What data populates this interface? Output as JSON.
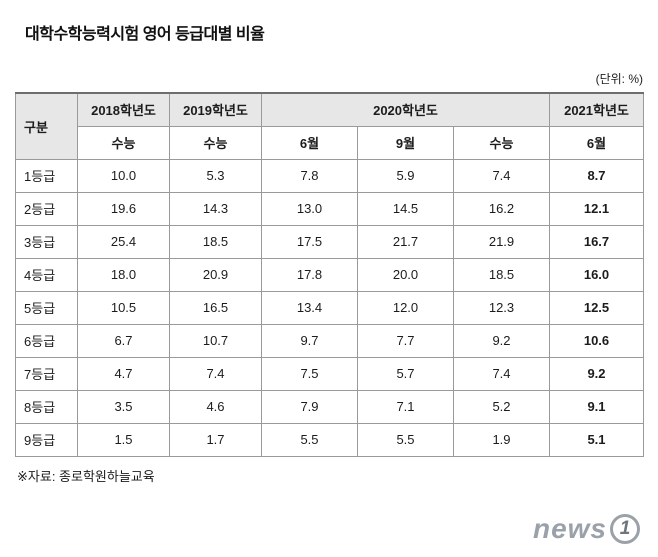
{
  "page": {
    "title": "대학수학능력시험 영어 등급대별 비율",
    "unit_note": "(단위: %)",
    "source_note": "※자료: 종로학원하늘교육",
    "logo": {
      "text": "news",
      "mark": "1"
    }
  },
  "table": {
    "corner_header": "구분",
    "col_groups": [
      {
        "label": "2018학년도",
        "sub": [
          "수능"
        ]
      },
      {
        "label": "2019학년도",
        "sub": [
          "수능"
        ]
      },
      {
        "label": "2020학년도",
        "sub": [
          "6월",
          "9월",
          "수능"
        ]
      },
      {
        "label": "2021학년도",
        "sub": [
          "6월"
        ]
      }
    ],
    "rows": [
      {
        "label": "1등급",
        "values": [
          "10.0",
          "5.3",
          "7.8",
          "5.9",
          "7.4",
          "8.7"
        ]
      },
      {
        "label": "2등급",
        "values": [
          "19.6",
          "14.3",
          "13.0",
          "14.5",
          "16.2",
          "12.1"
        ]
      },
      {
        "label": "3등급",
        "values": [
          "25.4",
          "18.5",
          "17.5",
          "21.7",
          "21.9",
          "16.7"
        ]
      },
      {
        "label": "4등급",
        "values": [
          "18.0",
          "20.9",
          "17.8",
          "20.0",
          "18.5",
          "16.0"
        ]
      },
      {
        "label": "5등급",
        "values": [
          "10.5",
          "16.5",
          "13.4",
          "12.0",
          "12.3",
          "12.5"
        ]
      },
      {
        "label": "6등급",
        "values": [
          "6.7",
          "10.7",
          "9.7",
          "7.7",
          "9.2",
          "10.6"
        ]
      },
      {
        "label": "7등급",
        "values": [
          "4.7",
          "7.4",
          "7.5",
          "5.7",
          "7.4",
          "9.2"
        ]
      },
      {
        "label": "8등급",
        "values": [
          "3.5",
          "4.6",
          "7.9",
          "7.1",
          "5.2",
          "9.1"
        ]
      },
      {
        "label": "9등급",
        "values": [
          "1.5",
          "1.7",
          "5.5",
          "5.5",
          "1.9",
          "5.1"
        ]
      }
    ]
  },
  "chart_data": {
    "type": "table",
    "title": "대학수학능력시험 영어 등급대별 비율",
    "unit": "%",
    "columns": [
      "구분",
      "2018학년도 수능",
      "2019학년도 수능",
      "2020학년도 6월",
      "2020학년도 9월",
      "2020학년도 수능",
      "2021학년도 6월"
    ],
    "rows": [
      [
        "1등급",
        10.0,
        5.3,
        7.8,
        5.9,
        7.4,
        8.7
      ],
      [
        "2등급",
        19.6,
        14.3,
        13.0,
        14.5,
        16.2,
        12.1
      ],
      [
        "3등급",
        25.4,
        18.5,
        17.5,
        21.7,
        21.9,
        16.7
      ],
      [
        "4등급",
        18.0,
        20.9,
        17.8,
        20.0,
        18.5,
        16.0
      ],
      [
        "5등급",
        10.5,
        16.5,
        13.4,
        12.0,
        12.3,
        12.5
      ],
      [
        "6등급",
        6.7,
        10.7,
        9.7,
        7.7,
        9.2,
        10.6
      ],
      [
        "7등급",
        4.7,
        7.4,
        7.5,
        5.7,
        7.4,
        9.2
      ],
      [
        "8등급",
        3.5,
        4.6,
        7.9,
        7.1,
        5.2,
        9.1
      ],
      [
        "9등급",
        1.5,
        1.7,
        5.5,
        5.5,
        1.9,
        5.1
      ]
    ],
    "source": "종로학원하늘교육"
  }
}
